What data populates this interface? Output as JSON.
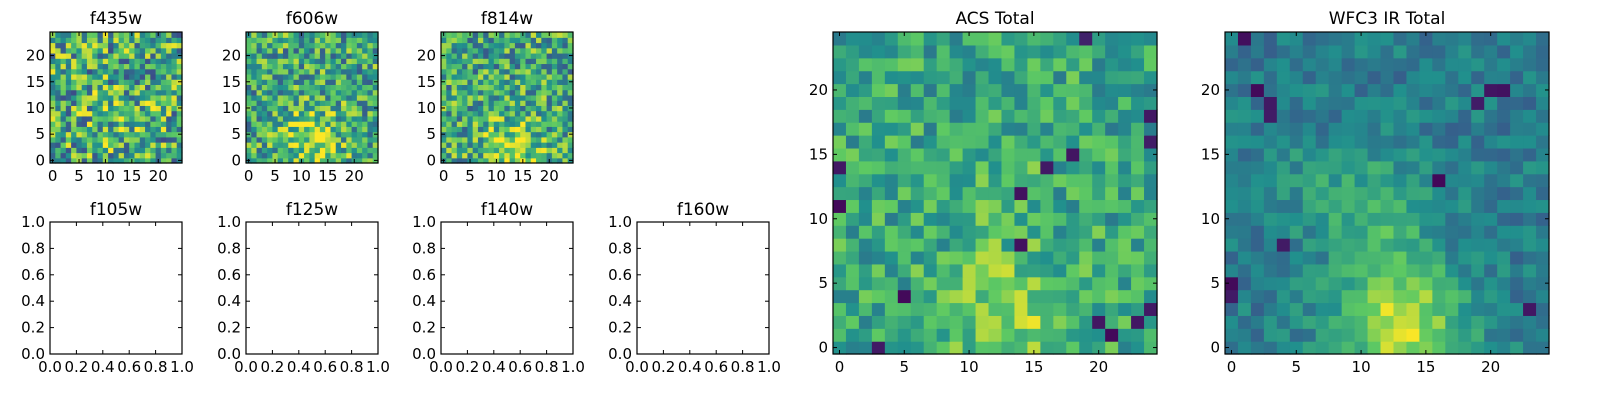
{
  "colormap": "viridis",
  "colors": {
    "frame": "#000000",
    "background": "#ffffff",
    "viridis_stops": [
      "#440154",
      "#3b528b",
      "#21908d",
      "#5dc963",
      "#fde725"
    ]
  },
  "chart_data": [
    {
      "type": "heatmap",
      "title": "f435w",
      "xlim": [
        -0.5,
        24.5
      ],
      "ylim": [
        -0.5,
        24.5
      ],
      "xticks": [
        0,
        5,
        10,
        15,
        20
      ],
      "yticks": [
        0,
        5,
        10,
        15,
        20
      ],
      "tick_labels_x": [
        "0",
        "5",
        "10",
        "15",
        "20"
      ],
      "tick_labels_y": [
        "0",
        "5",
        "10",
        "15",
        "20"
      ],
      "grid_size": [
        25,
        25
      ],
      "value_range": [
        0,
        1
      ],
      "noise": 0.38,
      "seed": 11,
      "hotspots": [
        {
          "x": 12,
          "y": 8,
          "sigma": 5,
          "amp": 0.08
        }
      ]
    },
    {
      "type": "heatmap",
      "title": "f606w",
      "xlim": [
        -0.5,
        24.5
      ],
      "ylim": [
        -0.5,
        24.5
      ],
      "xticks": [
        0,
        5,
        10,
        15,
        20
      ],
      "yticks": [
        0,
        5,
        10,
        15,
        20
      ],
      "tick_labels_x": [
        "0",
        "5",
        "10",
        "15",
        "20"
      ],
      "tick_labels_y": [
        "0",
        "5",
        "10",
        "15",
        "20"
      ],
      "grid_size": [
        25,
        25
      ],
      "value_range": [
        0,
        1
      ],
      "noise": 0.32,
      "seed": 23,
      "hotspots": [
        {
          "x": 11,
          "y": 6,
          "sigma": 4,
          "amp": 0.2
        },
        {
          "x": 14,
          "y": 1,
          "sigma": 3,
          "amp": 0.2
        }
      ]
    },
    {
      "type": "heatmap",
      "title": "f814w",
      "xlim": [
        -0.5,
        24.5
      ],
      "ylim": [
        -0.5,
        24.5
      ],
      "xticks": [
        0,
        5,
        10,
        15,
        20
      ],
      "yticks": [
        0,
        5,
        10,
        15,
        20
      ],
      "tick_labels_x": [
        "0",
        "5",
        "10",
        "15",
        "20"
      ],
      "tick_labels_y": [
        "0",
        "5",
        "10",
        "15",
        "20"
      ],
      "grid_size": [
        25,
        25
      ],
      "value_range": [
        0,
        1
      ],
      "noise": 0.32,
      "seed": 37,
      "hotspots": [
        {
          "x": 13,
          "y": 2,
          "sigma": 4,
          "amp": 0.3
        }
      ]
    },
    {
      "type": "heatmap",
      "title": "f105w",
      "empty": true,
      "xlim": [
        0,
        1
      ],
      "ylim": [
        0,
        1
      ],
      "xticks": [
        0,
        0.2,
        0.4,
        0.6,
        0.8,
        1.0
      ],
      "yticks": [
        0,
        0.2,
        0.4,
        0.6,
        0.8,
        1.0
      ],
      "tick_labels_x": [
        "0.0",
        "0.2",
        "0.4",
        "0.6",
        "0.8",
        "1.0"
      ],
      "tick_labels_y": [
        "0.0",
        "0.2",
        "0.4",
        "0.6",
        "0.8",
        "1.0"
      ]
    },
    {
      "type": "heatmap",
      "title": "f125w",
      "empty": true,
      "xlim": [
        0,
        1
      ],
      "ylim": [
        0,
        1
      ],
      "xticks": [
        0,
        0.2,
        0.4,
        0.6,
        0.8,
        1.0
      ],
      "yticks": [
        0,
        0.2,
        0.4,
        0.6,
        0.8,
        1.0
      ],
      "tick_labels_x": [
        "0.0",
        "0.2",
        "0.4",
        "0.6",
        "0.8",
        "1.0"
      ],
      "tick_labels_y": [
        "0.0",
        "0.2",
        "0.4",
        "0.6",
        "0.8",
        "1.0"
      ]
    },
    {
      "type": "heatmap",
      "title": "f140w",
      "empty": true,
      "xlim": [
        0,
        1
      ],
      "ylim": [
        0,
        1
      ],
      "xticks": [
        0,
        0.2,
        0.4,
        0.6,
        0.8,
        1.0
      ],
      "yticks": [
        0,
        0.2,
        0.4,
        0.6,
        0.8,
        1.0
      ],
      "tick_labels_x": [
        "0.0",
        "0.2",
        "0.4",
        "0.6",
        "0.8",
        "1.0"
      ],
      "tick_labels_y": [
        "0.0",
        "0.2",
        "0.4",
        "0.6",
        "0.8",
        "1.0"
      ]
    },
    {
      "type": "heatmap",
      "title": "f160w",
      "empty": true,
      "xlim": [
        0,
        1
      ],
      "ylim": [
        0,
        1
      ],
      "xticks": [
        0,
        0.2,
        0.4,
        0.6,
        0.8,
        1.0
      ],
      "yticks": [
        0,
        0.2,
        0.4,
        0.6,
        0.8,
        1.0
      ],
      "tick_labels_x": [
        "0.0",
        "0.2",
        "0.4",
        "0.6",
        "0.8",
        "1.0"
      ],
      "tick_labels_y": [
        "0.0",
        "0.2",
        "0.4",
        "0.6",
        "0.8",
        "1.0"
      ]
    },
    {
      "type": "heatmap",
      "title": "ACS Total",
      "xlim": [
        -0.5,
        24.5
      ],
      "ylim": [
        -0.5,
        24.5
      ],
      "xticks": [
        0,
        5,
        10,
        15,
        20
      ],
      "yticks": [
        0,
        5,
        10,
        15,
        20
      ],
      "tick_labels_x": [
        "0",
        "5",
        "10",
        "15",
        "20"
      ],
      "tick_labels_y": [
        "0",
        "5",
        "10",
        "15",
        "20"
      ],
      "grid_size": [
        25,
        25
      ],
      "value_range": [
        0,
        1
      ],
      "noise": 0.2,
      "seed": 53,
      "base": 0.6,
      "hotspots": [
        {
          "x": 13,
          "y": 2,
          "sigma": 4,
          "amp": 0.22
        },
        {
          "x": 12,
          "y": 12,
          "sigma": 2,
          "amp": 0.15
        }
      ],
      "dark_pixels": [
        [
          19,
          24
        ],
        [
          18,
          15
        ],
        [
          16,
          14
        ],
        [
          0,
          14
        ],
        [
          14,
          12
        ],
        [
          0,
          11
        ],
        [
          24,
          18
        ],
        [
          24,
          16
        ],
        [
          24,
          3
        ],
        [
          23,
          2
        ],
        [
          14,
          8
        ],
        [
          5,
          4
        ],
        [
          3,
          0
        ],
        [
          20,
          2
        ],
        [
          21,
          1
        ]
      ]
    },
    {
      "type": "heatmap",
      "title": "WFC3 IR Total",
      "xlim": [
        -0.5,
        24.5
      ],
      "ylim": [
        -0.5,
        24.5
      ],
      "xticks": [
        0,
        5,
        10,
        15,
        20
      ],
      "yticks": [
        0,
        5,
        10,
        15,
        20
      ],
      "tick_labels_x": [
        "0",
        "5",
        "10",
        "15",
        "20"
      ],
      "tick_labels_y": [
        "0",
        "5",
        "10",
        "15",
        "20"
      ],
      "grid_size": [
        25,
        25
      ],
      "value_range": [
        0,
        1
      ],
      "noise": 0.12,
      "seed": 71,
      "base": 0.42,
      "hotspots": [
        {
          "x": 13,
          "y": 2,
          "sigma": 3.5,
          "amp": 0.5
        },
        {
          "x": 12,
          "y": 11,
          "sigma": 2.5,
          "amp": 0.22
        },
        {
          "x": 7,
          "y": 12,
          "sigma": 3,
          "amp": 0.12
        }
      ],
      "dark_pixels": [
        [
          1,
          24
        ],
        [
          2,
          20
        ],
        [
          3,
          19
        ],
        [
          3,
          18
        ],
        [
          19,
          19
        ],
        [
          20,
          20
        ],
        [
          21,
          20
        ],
        [
          16,
          13
        ],
        [
          4,
          8
        ],
        [
          0,
          4
        ],
        [
          0,
          5
        ],
        [
          23,
          3
        ]
      ]
    }
  ]
}
